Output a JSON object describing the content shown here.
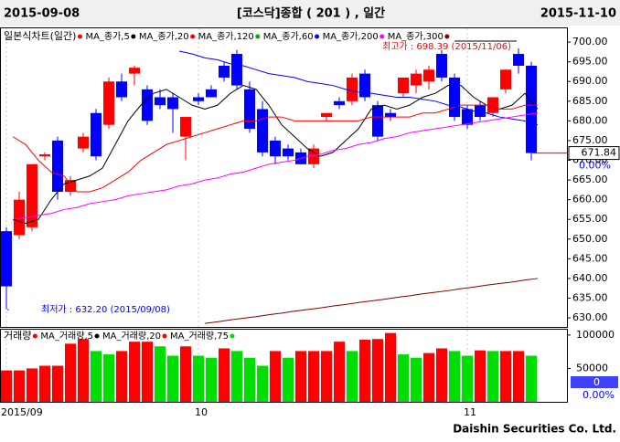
{
  "header": {
    "start": "2015-09-08",
    "title": "[코스닥]종합  ( 201 ) ,  일간",
    "end": "2015-11-10"
  },
  "footer": "Daishin Securities Co. Ltd.",
  "chart_data": {
    "type": "candlestick",
    "chart_label": "일본식차트(일간)",
    "categories": [
      "2015/09",
      null,
      null,
      null,
      null,
      null,
      null,
      null,
      null,
      null,
      null,
      null,
      null,
      null,
      null,
      "10",
      null,
      null,
      null,
      null,
      null,
      null,
      null,
      null,
      null,
      null,
      null,
      null,
      null,
      null,
      null,
      null,
      null,
      null,
      null,
      null,
      "11",
      null,
      null,
      null,
      null,
      null
    ],
    "open": [
      652,
      651,
      653,
      671,
      675,
      662,
      673,
      682,
      679,
      690,
      692,
      688,
      686,
      686,
      676,
      686,
      688,
      694,
      697,
      688,
      683,
      675,
      673,
      672,
      669,
      681,
      685,
      685,
      692,
      684,
      682,
      687,
      689,
      690,
      697,
      691,
      683,
      684,
      682,
      688,
      697,
      694
    ],
    "high": [
      653,
      662,
      669,
      672,
      676,
      666,
      677,
      683,
      691,
      692,
      694,
      689,
      688,
      687,
      681,
      687,
      689,
      695,
      698,
      690,
      685,
      676,
      674,
      673,
      674,
      682,
      686,
      692,
      693,
      685,
      683,
      691,
      693,
      694,
      698,
      692,
      684,
      685,
      686,
      693,
      698.39,
      695
    ],
    "low": [
      632.2,
      650,
      652,
      670,
      660,
      661,
      672,
      670,
      678,
      685,
      689,
      679,
      683,
      677,
      670,
      684,
      686,
      690,
      688,
      677,
      671,
      669,
      670,
      669,
      668,
      680,
      683,
      684,
      685,
      675,
      680,
      686,
      687,
      688,
      690,
      680,
      678,
      680,
      681,
      687,
      692,
      670
    ],
    "close": [
      638,
      660,
      669,
      671.5,
      662,
      665,
      676,
      671,
      690,
      686,
      693.5,
      680,
      684,
      683,
      681,
      685,
      686,
      691,
      689,
      678,
      672,
      671,
      671,
      669,
      673,
      682,
      684,
      691,
      686,
      676,
      681,
      691,
      692,
      693,
      691,
      681,
      679,
      681,
      686,
      693,
      694,
      671.84
    ],
    "up_color": "#ff0000",
    "down_color": "#0000ff",
    "series": [
      {
        "name": "MA_종가,5",
        "color": "#000000",
        "values": [
          655,
          654,
          655,
          660,
          664,
          665,
          666,
          668,
          674,
          680,
          684,
          687,
          688,
          686,
          684,
          683,
          684,
          687,
          689,
          688,
          684,
          679,
          676,
          673,
          671,
          672,
          675,
          678,
          683,
          684,
          683,
          684,
          686,
          687,
          689,
          689,
          686,
          684,
          683,
          684,
          687,
          683
        ]
      },
      {
        "name": "MA_종가,20",
        "color": "#ff0000",
        "values": [
          676,
          674,
          670,
          667,
          666,
          662,
          662,
          663,
          665,
          667,
          670,
          672,
          674,
          675,
          676,
          677,
          678,
          679,
          680,
          680,
          681,
          681,
          680,
          680,
          680,
          680,
          680,
          680,
          681,
          681,
          681,
          681,
          682,
          682,
          683,
          684,
          684,
          684,
          683,
          683,
          684,
          684
        ]
      },
      {
        "name": "MA_종가,120",
        "color": "#00b000",
        "values": [
          null,
          null,
          null,
          null,
          null,
          null,
          null,
          null,
          null,
          null,
          null,
          null,
          null,
          null,
          null,
          null,
          null,
          null,
          null,
          null,
          null,
          null,
          null,
          null,
          null,
          null,
          null,
          null,
          null,
          null,
          null,
          null,
          null,
          null,
          null,
          null,
          null,
          null,
          null,
          null,
          null,
          null
        ]
      },
      {
        "name": "MA_종가,60",
        "color": "#0000ff",
        "values": [
          null,
          null,
          null,
          null,
          null,
          null,
          null,
          null,
          null,
          null,
          null,
          null,
          null,
          697.7,
          697,
          696,
          695.5,
          694.5,
          694,
          693,
          692,
          691.5,
          691,
          690,
          689.5,
          689,
          688,
          687.3,
          687,
          686.5,
          686,
          686,
          685.5,
          685,
          684,
          683.5,
          682.5,
          682,
          681,
          680.5,
          680,
          679
        ]
      },
      {
        "name": "MA_종가,200",
        "color": "#ff00ff",
        "values": [
          655,
          655.5,
          656,
          656.5,
          657.5,
          658,
          659,
          659.5,
          660,
          661,
          661.5,
          662,
          662.5,
          663.5,
          664,
          665,
          665.5,
          666.5,
          667,
          668,
          669,
          669.5,
          670,
          671,
          671.5,
          672.5,
          673,
          674,
          674.5,
          675.5,
          676,
          677,
          677.5,
          678,
          678.5,
          679,
          679.5,
          680,
          680.5,
          681,
          681.5,
          682
        ]
      },
      {
        "name": "MA_종가,300",
        "color": "#800000",
        "values": [
          null,
          null,
          null,
          null,
          null,
          null,
          null,
          null,
          null,
          null,
          null,
          null,
          null,
          null,
          null,
          628.6,
          629,
          629.5,
          629.9,
          630.3,
          630.8,
          631.2,
          631.7,
          632.1,
          632.5,
          633,
          633.4,
          633.9,
          634.3,
          634.7,
          635.2,
          635.6,
          636.1,
          636.5,
          636.9,
          637.4,
          637.8,
          638.3,
          638.7,
          639.1,
          639.6,
          640
        ]
      }
    ],
    "ylim": [
      627.7,
      703.5
    ],
    "yticks": [
      {
        "value": 630,
        "label": "630.00"
      },
      {
        "value": 635,
        "label": "635.00"
      },
      {
        "value": 640,
        "label": "640.00"
      },
      {
        "value": 645,
        "label": "645.00"
      },
      {
        "value": 650,
        "label": "650.00"
      },
      {
        "value": 655,
        "label": "655.00"
      },
      {
        "value": 660,
        "label": "660.00"
      },
      {
        "value": 665,
        "label": "665.00"
      },
      {
        "value": 670,
        "label": "670.00"
      },
      {
        "value": 675,
        "label": "675.00"
      },
      {
        "value": 680,
        "label": "680.00"
      },
      {
        "value": 685,
        "label": "685.00"
      },
      {
        "value": 690,
        "label": "690.00"
      },
      {
        "value": 695,
        "label": "695.00"
      },
      {
        "value": 700,
        "label": "700.00"
      }
    ],
    "change_label": "0.00%",
    "annotations": [
      "최고가 : 698.39 (2015/11/06)",
      "최저가 : 632.20 (2015/09/08)"
    ],
    "volume": {
      "label": "거래량",
      "ma_labels": [
        "MA_거래량,5",
        "MA_거래량,20",
        "MA_거래량,75"
      ],
      "values": [
        47000,
        47000,
        50000,
        54000,
        54000,
        87000,
        94000,
        76000,
        71000,
        76000,
        90000,
        90000,
        83000,
        69000,
        83000,
        69000,
        66000,
        80000,
        76000,
        66000,
        54000,
        76000,
        66000,
        76000,
        76000,
        76000,
        90000,
        76000,
        93000,
        94000,
        103000,
        71000,
        66000,
        73000,
        80000,
        76000,
        69000,
        77000,
        76000,
        76000,
        76000,
        69000
      ],
      "up_color": "#ff0000",
      "down_color": "#00dd00",
      "ylim": [
        0,
        108000
      ],
      "yticks": [
        50000,
        100000
      ],
      "last_label": "0",
      "change_label": "0.00%"
    }
  }
}
